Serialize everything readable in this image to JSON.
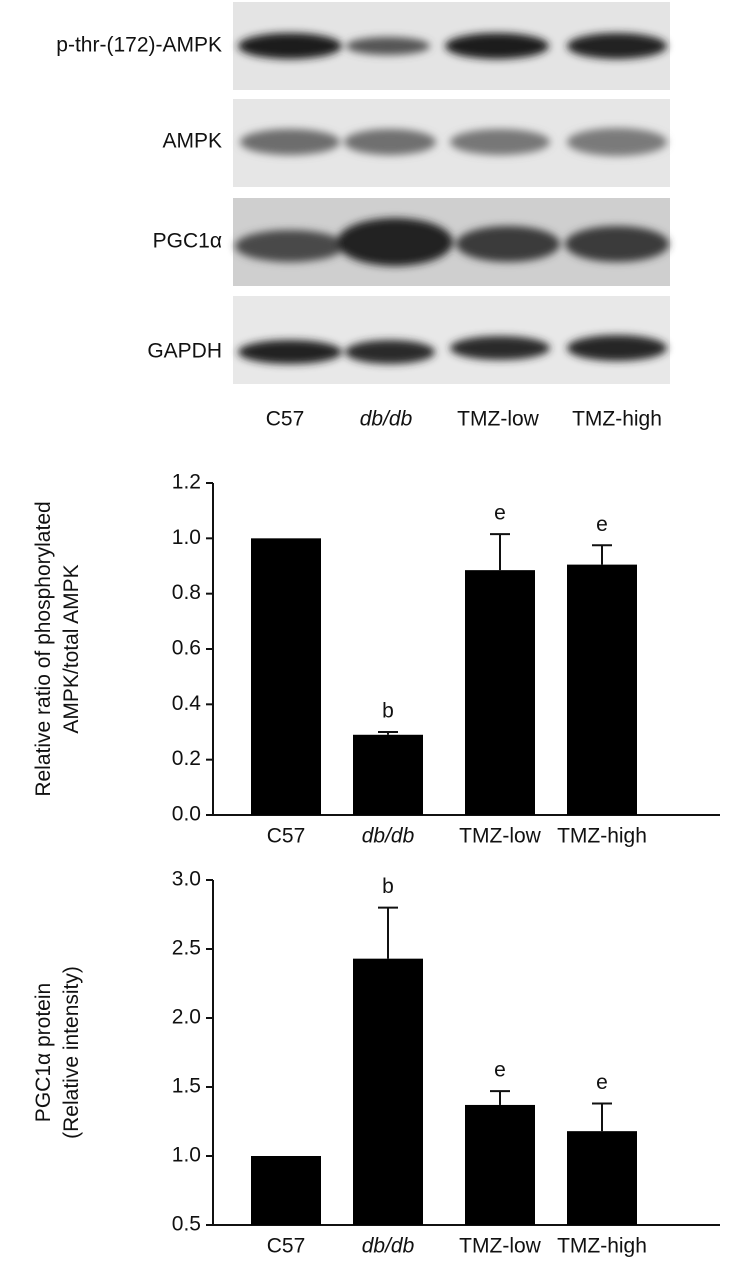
{
  "blot": {
    "row_labels": [
      "p-thr-(172)-AMPK",
      "AMPK",
      "PGC1α",
      "GAPDH"
    ],
    "lane_labels": [
      "C57",
      "db/db",
      "TMZ-low",
      "TMZ-high"
    ]
  },
  "chart_data": [
    {
      "type": "bar",
      "y_label": "Relative ratio of phosphorylated\nAMPK/total AMPK",
      "categories": [
        "C57",
        "db/db",
        "TMZ-low",
        "TMZ-high"
      ],
      "italic_categories": [
        1
      ],
      "values": [
        1.0,
        0.29,
        0.885,
        0.905
      ],
      "errors": [
        0,
        0.01,
        0.13,
        0.07
      ],
      "bar_labels": [
        null,
        "b",
        "e",
        "e"
      ],
      "color": "#000000",
      "ylim": [
        0,
        1.2
      ],
      "yticks": [
        {
          "value": 0,
          "label": "0.0"
        },
        0.2,
        0.4,
        0.6,
        0.8,
        {
          "value": 1,
          "label": "1.0"
        },
        1.2
      ]
    },
    {
      "type": "bar",
      "y_label": "PGC1α protein\n(Relative intensity)",
      "categories": [
        "C57",
        "db/db",
        "TMZ-low",
        "TMZ-high"
      ],
      "italic_categories": [
        1
      ],
      "values": [
        1.0,
        2.43,
        1.37,
        1.18
      ],
      "errors": [
        0,
        0.37,
        0.1,
        0.2
      ],
      "bar_labels": [
        null,
        "b",
        "e",
        "e"
      ],
      "color": "#000000",
      "ylim": [
        0.5,
        3.0
      ],
      "yticks": [
        0.5,
        {
          "value": 1,
          "label": "1.0"
        },
        1.5,
        {
          "value": 2,
          "label": "2.0"
        },
        2.5,
        {
          "value": 3,
          "label": "3.0"
        }
      ]
    }
  ]
}
